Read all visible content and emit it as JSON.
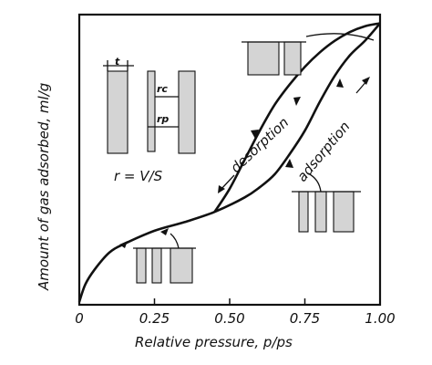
{
  "chart_data": {
    "type": "line",
    "xlabel": "Relative pressure, p/ps",
    "ylabel": "Amount of gas adsorbed, ml/g",
    "xlim": [
      0,
      1.0
    ],
    "ylim": [
      0,
      1.0
    ],
    "grid": false,
    "x_tick_labels": [
      "0",
      "0.25",
      "0.50",
      "0.75",
      "1.00"
    ],
    "x_ticks": [
      0,
      0.25,
      0.5,
      0.75,
      1.0
    ],
    "series": [
      {
        "name": "adsorption",
        "x": [
          0,
          0.02,
          0.05,
          0.1,
          0.15,
          0.25,
          0.35,
          0.45,
          0.55,
          0.6,
          0.65,
          0.7,
          0.75,
          0.8,
          0.85,
          0.9,
          0.95,
          1.0
        ],
        "y": [
          0.01,
          0.07,
          0.12,
          0.18,
          0.21,
          0.255,
          0.285,
          0.32,
          0.37,
          0.405,
          0.45,
          0.52,
          0.6,
          0.7,
          0.79,
          0.86,
          0.91,
          0.97
        ]
      },
      {
        "name": "desorption",
        "x": [
          0.45,
          0.5,
          0.55,
          0.6,
          0.65,
          0.7,
          0.75,
          0.8,
          0.85,
          0.9,
          0.95,
          1.0
        ],
        "y": [
          0.32,
          0.4,
          0.5,
          0.6,
          0.69,
          0.76,
          0.82,
          0.87,
          0.91,
          0.94,
          0.96,
          0.97
        ]
      }
    ],
    "annotations": {
      "desorption": "desorption",
      "adsorption": "adsorption",
      "formula": "r = V/S",
      "t": "t",
      "rc": "rc",
      "rp": "rp"
    }
  }
}
